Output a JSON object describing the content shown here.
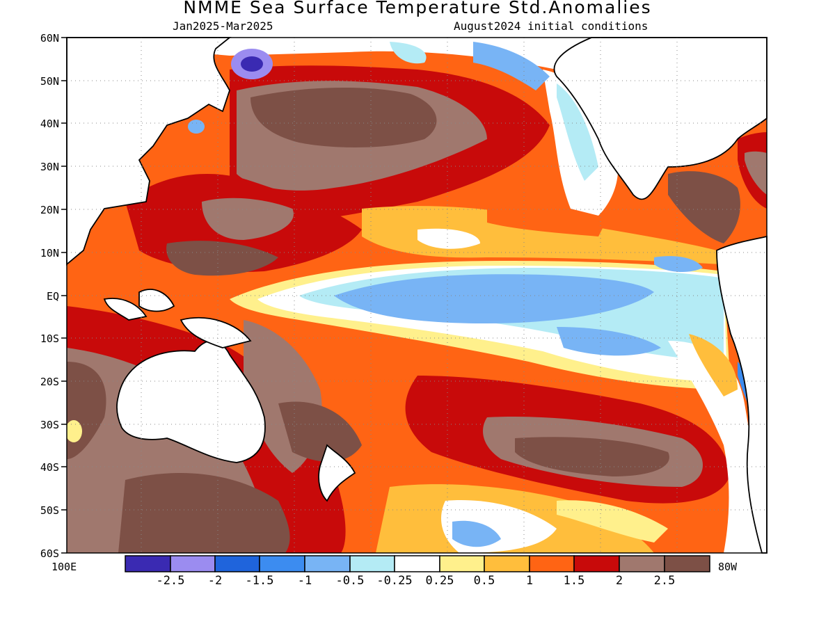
{
  "title": "NMME Sea Surface Temperature Std.Anomalies",
  "subtitle_left": "Jan2025-Mar2025",
  "subtitle_right": "August2024 initial conditions",
  "lat_labels": [
    "60N",
    "50N",
    "40N",
    "30N",
    "20N",
    "10N",
    "EQ",
    "10S",
    "20S",
    "30S",
    "40S",
    "50S",
    "60S"
  ],
  "lon_left": "100E",
  "lon_right": "80W",
  "legend": {
    "colors": [
      "#3a2ab2",
      "#9b8cf0",
      "#1f64dc",
      "#3c8cf0",
      "#78b4f5",
      "#b4ebf5",
      "#ffffff",
      "#fff08c",
      "#ffbe3c",
      "#ff6414",
      "#c80a0a",
      "#a0786e",
      "#7d5046"
    ],
    "labels": [
      "-2.5",
      "-2",
      "-1.5",
      "-1",
      "-0.5",
      "-0.25",
      "0.25",
      "0.5",
      "1",
      "1.5",
      "2",
      "2.5"
    ]
  }
}
